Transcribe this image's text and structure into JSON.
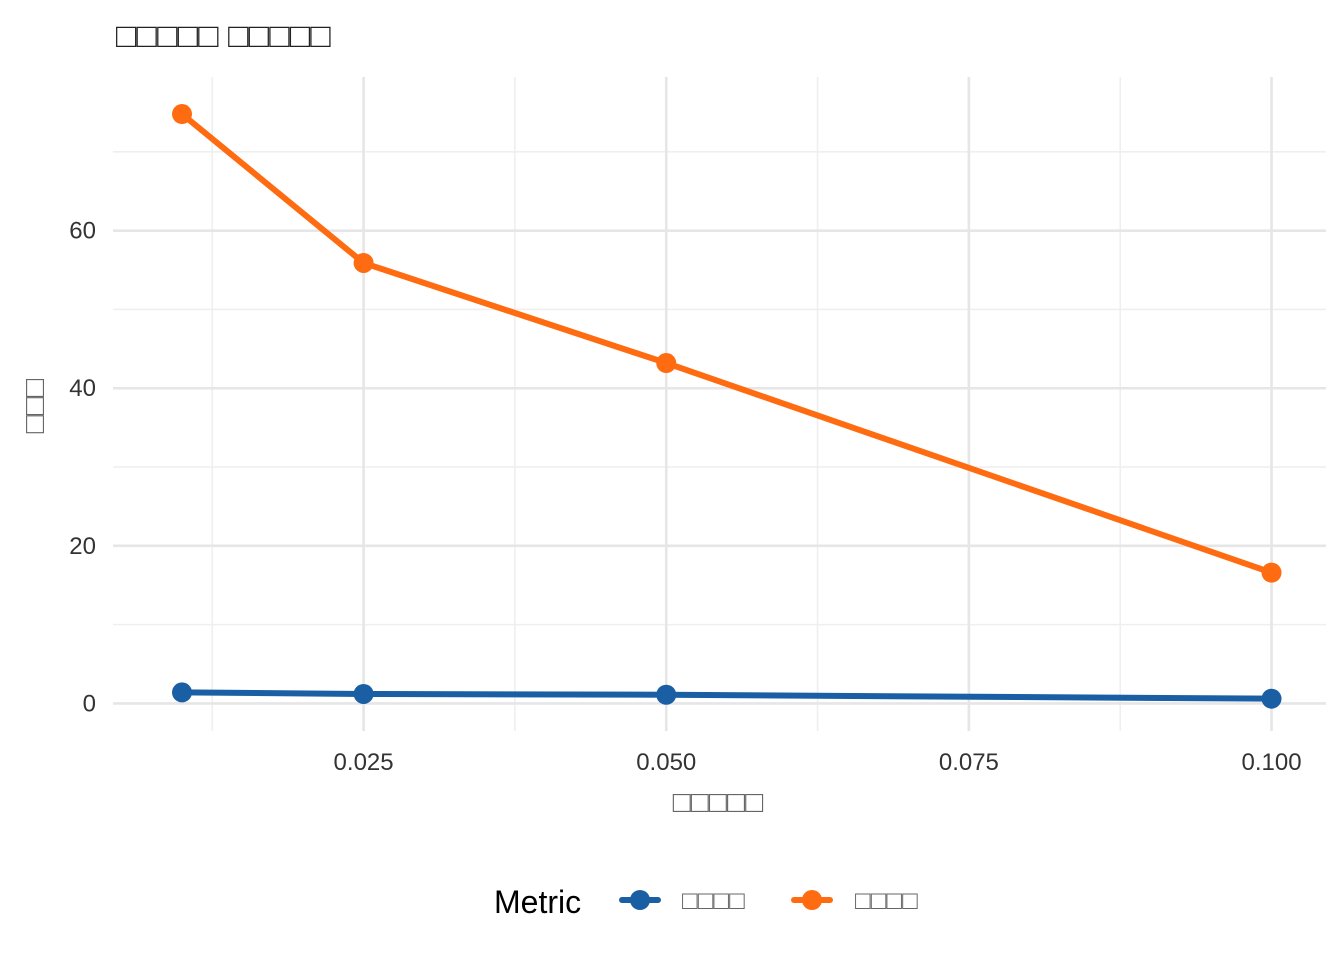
{
  "chart_data": {
    "type": "line",
    "title": "□□□□□ □□□□□",
    "xlabel": "□□□□□",
    "ylabel": "□□□",
    "x": [
      0.01,
      0.025,
      0.05,
      0.1
    ],
    "xlim": [
      0.0043,
      0.1045
    ],
    "ylim": [
      -3.5,
      79.5
    ],
    "x_ticks": [
      0.025,
      0.05,
      0.075,
      0.1
    ],
    "x_tick_labels": [
      "0.025",
      "0.050",
      "0.075",
      "0.100"
    ],
    "x_minor_ticks": [
      0.0125,
      0.0375,
      0.0625,
      0.0875
    ],
    "y_ticks": [
      0,
      20,
      40,
      60
    ],
    "y_tick_labels": [
      "0",
      "20",
      "40",
      "60"
    ],
    "y_minor_ticks": [
      10,
      30,
      50,
      70
    ],
    "grid": true,
    "legend": {
      "title": "Metric",
      "position": "bottom"
    },
    "series": [
      {
        "name": "□□□□",
        "color": "#1a5fa3",
        "values": [
          1.4,
          1.2,
          1.1,
          0.6
        ]
      },
      {
        "name": "□□□□",
        "color": "#ff6b10",
        "values": [
          74.8,
          55.9,
          43.2,
          16.6
        ]
      }
    ]
  }
}
